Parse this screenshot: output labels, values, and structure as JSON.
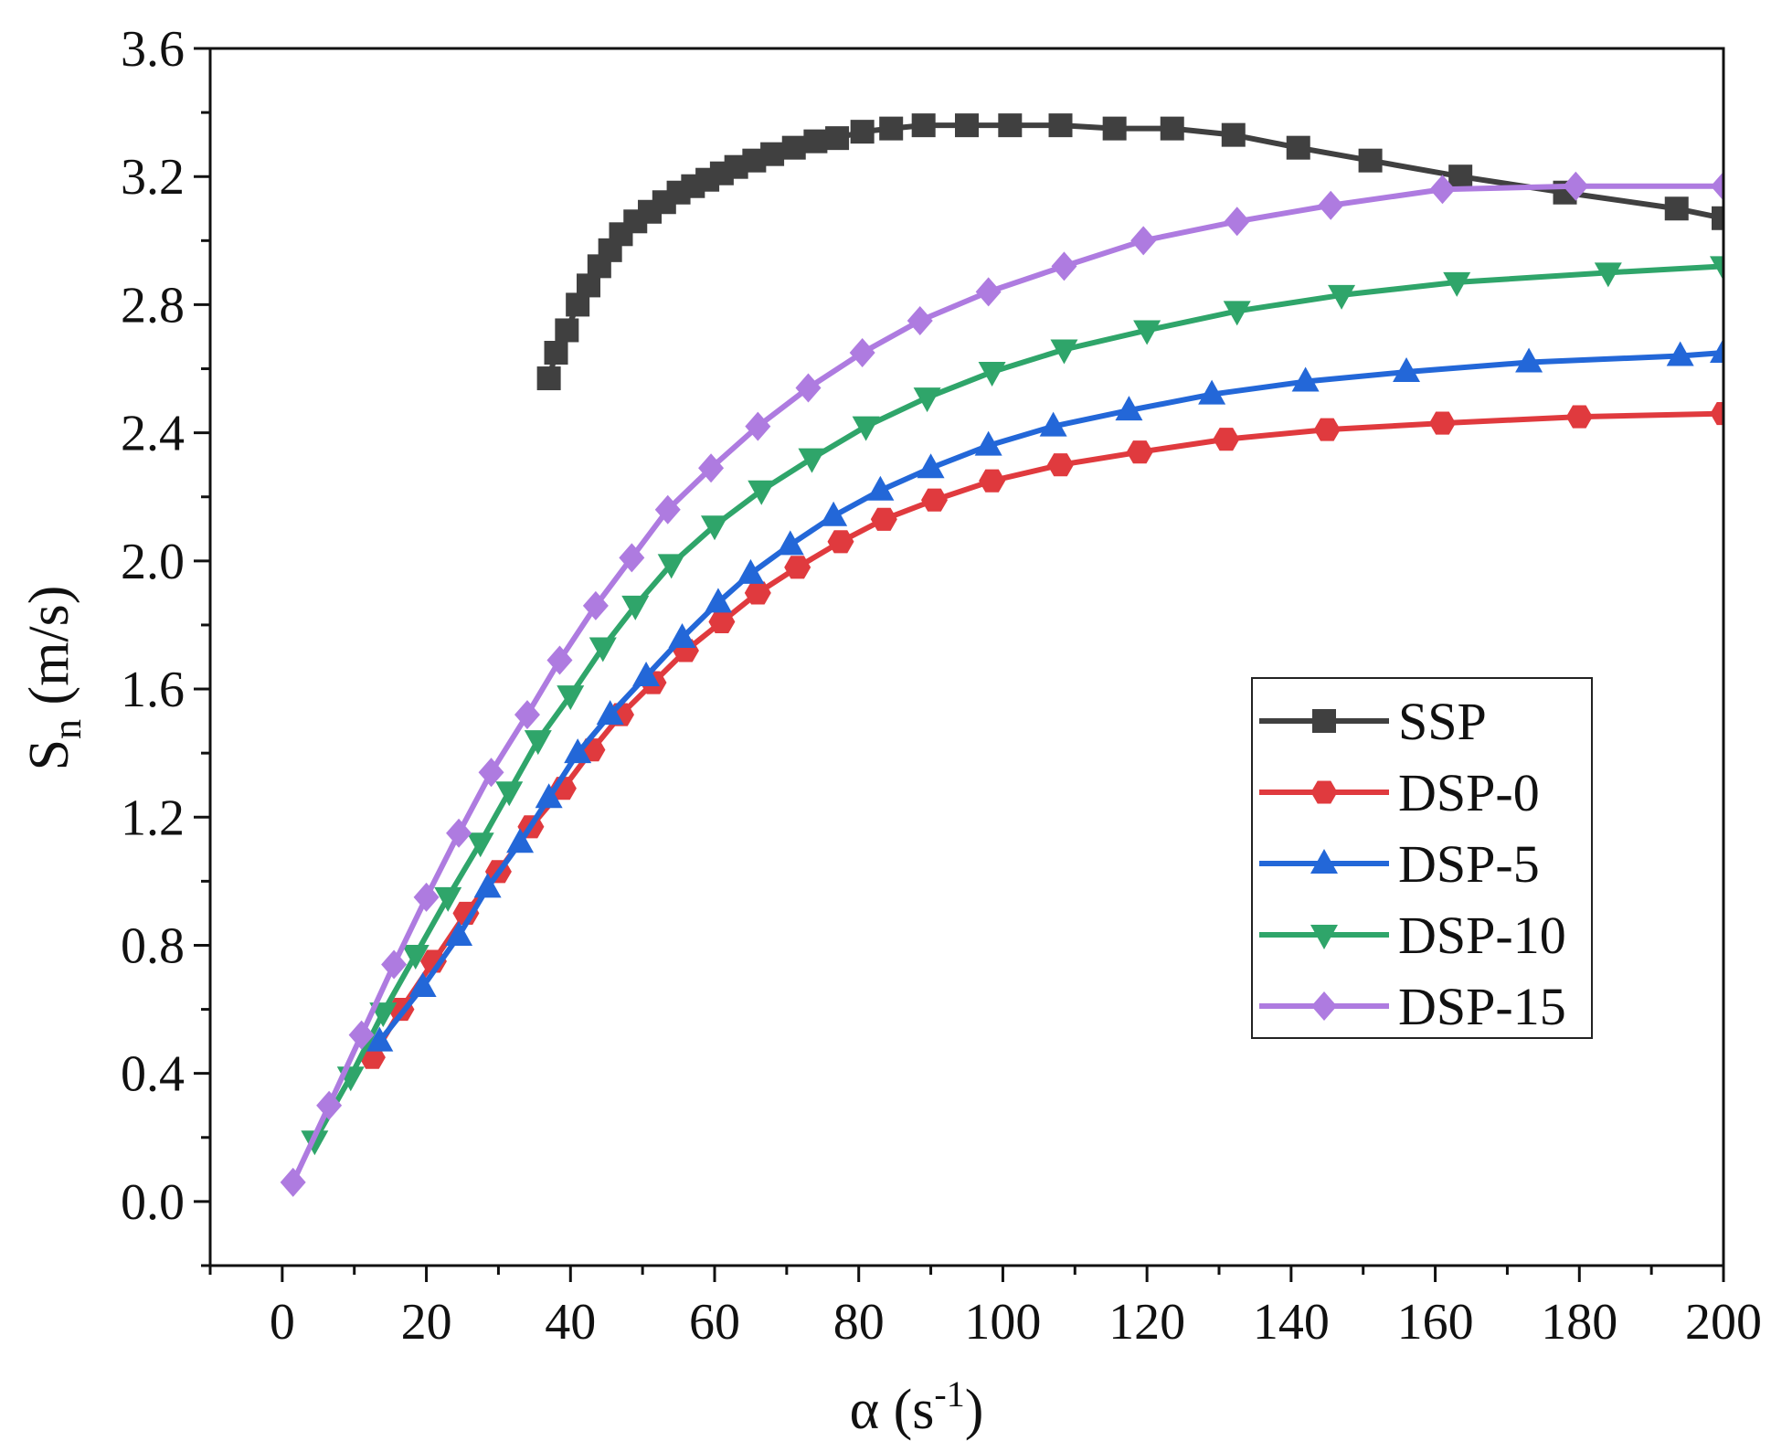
{
  "chart_data": {
    "type": "line",
    "title": "",
    "xlabel": "α (s",
    "xlabel_sup": "-1",
    "xlabel_close": ")",
    "ylabel": "S",
    "ylabel_sub": "n",
    "ylabel_units": " (m/s)",
    "xlim": [
      -10,
      200
    ],
    "ylim": [
      -0.2,
      3.6
    ],
    "xticks": [
      0,
      20,
      40,
      60,
      80,
      100,
      120,
      140,
      160,
      180,
      200
    ],
    "yticks": [
      0.0,
      0.4,
      0.8,
      1.2,
      1.6,
      2.0,
      2.4,
      2.8,
      3.2,
      3.6
    ],
    "xtick_labels": [
      "0",
      "20",
      "40",
      "60",
      "80",
      "100",
      "120",
      "140",
      "160",
      "180",
      "200"
    ],
    "ytick_labels": [
      "0.0",
      "0.4",
      "0.8",
      "1.2",
      "1.6",
      "2.0",
      "2.4",
      "2.8",
      "3.2",
      "3.6"
    ],
    "grid": false,
    "legend_position": "center-right",
    "series": [
      {
        "name": "SSP",
        "color": "#404040",
        "marker": "square",
        "x": [
          37,
          38,
          39.5,
          41,
          42.5,
          44,
          45.5,
          47,
          49,
          51,
          53,
          55,
          57,
          59,
          61,
          63,
          65.5,
          68,
          71,
          74,
          77,
          80.5,
          84.5,
          89,
          95,
          101,
          108,
          115.5,
          123.5,
          132,
          141,
          151,
          163.5,
          178,
          193.5,
          200
        ],
        "y": [
          2.57,
          2.65,
          2.72,
          2.8,
          2.86,
          2.92,
          2.97,
          3.02,
          3.06,
          3.09,
          3.12,
          3.15,
          3.17,
          3.19,
          3.21,
          3.23,
          3.25,
          3.27,
          3.29,
          3.31,
          3.32,
          3.34,
          3.35,
          3.36,
          3.36,
          3.36,
          3.36,
          3.35,
          3.35,
          3.33,
          3.29,
          3.25,
          3.2,
          3.15,
          3.1,
          3.07
        ]
      },
      {
        "name": "DSP-0",
        "color": "#e03a3e",
        "marker": "hexagon",
        "x": [
          12.5,
          16.5,
          21,
          25.5,
          30,
          34.5,
          39,
          43,
          47,
          51.5,
          56,
          61,
          66,
          71.5,
          77.5,
          83.5,
          90.5,
          98.5,
          108,
          119,
          131,
          145,
          161,
          180,
          200
        ],
        "y": [
          0.45,
          0.6,
          0.75,
          0.9,
          1.03,
          1.17,
          1.29,
          1.41,
          1.52,
          1.62,
          1.72,
          1.81,
          1.9,
          1.98,
          2.06,
          2.13,
          2.19,
          2.25,
          2.3,
          2.34,
          2.38,
          2.41,
          2.43,
          2.45,
          2.46
        ]
      },
      {
        "name": "DSP-5",
        "color": "#2367d8",
        "marker": "triangle-up",
        "x": [
          13.5,
          19.5,
          24.5,
          28.5,
          33,
          37,
          41,
          45.5,
          50.5,
          55.5,
          60.5,
          65,
          70.5,
          76.5,
          83,
          90,
          98,
          107,
          117.5,
          129,
          142,
          156,
          173,
          194,
          200
        ],
        "y": [
          0.5,
          0.67,
          0.83,
          0.98,
          1.12,
          1.26,
          1.4,
          1.52,
          1.64,
          1.76,
          1.87,
          1.96,
          2.05,
          2.14,
          2.22,
          2.29,
          2.36,
          2.42,
          2.47,
          2.52,
          2.56,
          2.59,
          2.62,
          2.64,
          2.65
        ]
      },
      {
        "name": "DSP-10",
        "color": "#2fa56a",
        "marker": "triangle-down",
        "x": [
          4.5,
          9.5,
          14,
          18.5,
          23,
          27.5,
          31.5,
          35.5,
          40,
          44.5,
          49,
          54,
          60,
          66.5,
          73.5,
          81,
          89.5,
          98.5,
          108.5,
          120,
          132.5,
          147,
          163,
          184,
          200
        ],
        "y": [
          0.19,
          0.39,
          0.59,
          0.77,
          0.95,
          1.12,
          1.28,
          1.44,
          1.58,
          1.73,
          1.86,
          1.99,
          2.11,
          2.22,
          2.32,
          2.42,
          2.51,
          2.59,
          2.66,
          2.72,
          2.78,
          2.83,
          2.87,
          2.9,
          2.92
        ]
      },
      {
        "name": "DSP-15",
        "color": "#ae7be0",
        "marker": "diamond",
        "x": [
          1.5,
          6.5,
          11,
          15.5,
          20,
          24.5,
          29,
          34,
          38.5,
          43.5,
          48.5,
          53.5,
          59.5,
          66,
          73,
          80.5,
          88.5,
          98,
          108.5,
          119.5,
          132.5,
          145.5,
          161,
          179.5,
          200
        ],
        "y": [
          0.06,
          0.3,
          0.52,
          0.74,
          0.95,
          1.15,
          1.34,
          1.52,
          1.69,
          1.86,
          2.01,
          2.16,
          2.29,
          2.42,
          2.54,
          2.65,
          2.75,
          2.84,
          2.92,
          3.0,
          3.06,
          3.11,
          3.16,
          3.17,
          3.17
        ]
      }
    ]
  }
}
